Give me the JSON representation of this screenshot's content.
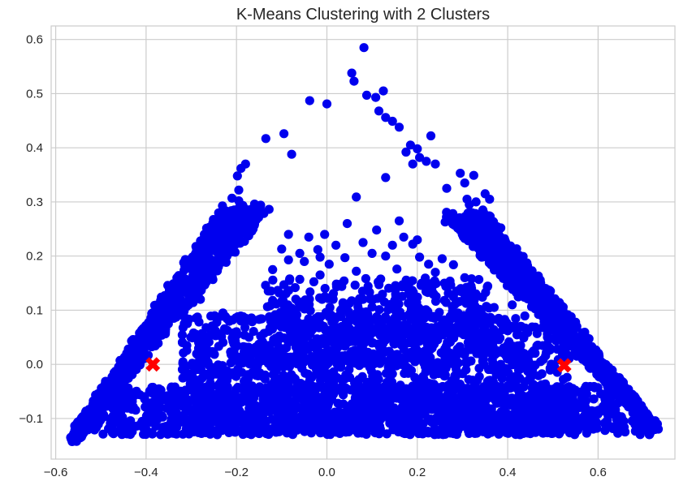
{
  "chart_data": {
    "type": "scatter",
    "title": "K-Means Clustering with 2 Clusters",
    "xlabel": "",
    "ylabel": "",
    "xlim": [
      -0.61,
      0.77
    ],
    "ylim": [
      -0.175,
      0.625
    ],
    "x_ticks": [
      -0.6,
      -0.4,
      -0.2,
      0.0,
      0.2,
      0.4,
      0.6
    ],
    "x_tick_labels": [
      "−0.6",
      "−0.4",
      "−0.2",
      "0.0",
      "0.2",
      "0.4",
      "0.6"
    ],
    "y_ticks": [
      -0.1,
      0.0,
      0.1,
      0.2,
      0.3,
      0.4,
      0.5,
      0.6
    ],
    "y_tick_labels": [
      "−0.1",
      "0.0",
      "0.1",
      "0.2",
      "0.3",
      "0.4",
      "0.5",
      "0.6"
    ],
    "grid": true,
    "legend": "none",
    "colors": {
      "points": "#0000ee",
      "centroids": "#ff0000",
      "grid": "#cccccc",
      "axes": "#cccccc",
      "background": "#ffffff"
    },
    "centroids": [
      {
        "x": -0.385,
        "y": 0.0
      },
      {
        "x": 0.525,
        "y": -0.002
      }
    ],
    "outlier_points": [
      [
        0.082,
        0.585
      ],
      [
        0.055,
        0.538
      ],
      [
        0.06,
        0.523
      ],
      [
        0.125,
        0.505
      ],
      [
        0.088,
        0.497
      ],
      [
        0.108,
        0.493
      ],
      [
        -0.038,
        0.487
      ],
      [
        0.0,
        0.481
      ],
      [
        0.115,
        0.468
      ],
      [
        0.13,
        0.456
      ],
      [
        0.145,
        0.449
      ],
      [
        0.16,
        0.438
      ],
      [
        -0.095,
        0.426
      ],
      [
        -0.135,
        0.417
      ],
      [
        0.23,
        0.422
      ],
      [
        0.185,
        0.405
      ],
      [
        0.2,
        0.398
      ],
      [
        0.175,
        0.392
      ],
      [
        0.205,
        0.382
      ],
      [
        -0.078,
        0.388
      ],
      [
        0.22,
        0.375
      ],
      [
        0.24,
        0.37
      ],
      [
        0.19,
        0.37
      ],
      [
        -0.18,
        0.37
      ],
      [
        -0.19,
        0.362
      ],
      [
        -0.198,
        0.348
      ],
      [
        0.295,
        0.353
      ],
      [
        0.325,
        0.349
      ],
      [
        0.13,
        0.345
      ],
      [
        0.305,
        0.335
      ],
      [
        0.265,
        0.325
      ],
      [
        -0.195,
        0.322
      ],
      [
        -0.21,
        0.307
      ],
      [
        -0.195,
        0.302
      ],
      [
        0.33,
        0.3
      ],
      [
        0.31,
        0.305
      ],
      [
        0.345,
        0.285
      ],
      [
        0.35,
        0.315
      ],
      [
        0.36,
        0.305
      ],
      [
        0.065,
        0.309
      ],
      [
        -0.16,
        0.296
      ],
      [
        0.315,
        0.295
      ],
      [
        -0.205,
        0.285
      ],
      [
        0.16,
        0.265
      ],
      [
        -0.19,
        0.26
      ],
      [
        0.045,
        0.26
      ],
      [
        -0.18,
        0.245
      ],
      [
        0.11,
        0.248
      ],
      [
        -0.085,
        0.24
      ],
      [
        -0.04,
        0.235
      ],
      [
        -0.005,
        0.24
      ],
      [
        0.17,
        0.235
      ],
      [
        0.2,
        0.23
      ],
      [
        0.19,
        0.222
      ],
      [
        -0.1,
        0.213
      ],
      [
        -0.02,
        0.212
      ],
      [
        0.145,
        0.22
      ],
      [
        0.08,
        0.225
      ],
      [
        0.02,
        0.22
      ],
      [
        -0.06,
        0.205
      ],
      [
        0.1,
        0.205
      ],
      [
        0.13,
        0.2
      ],
      [
        0.205,
        0.198
      ],
      [
        0.255,
        0.195
      ],
      [
        -0.085,
        0.193
      ],
      [
        -0.015,
        0.198
      ],
      [
        0.04,
        0.197
      ],
      [
        -0.05,
        0.19
      ],
      [
        0.005,
        0.185
      ],
      [
        0.225,
        0.185
      ],
      [
        0.28,
        0.184
      ],
      [
        -0.24,
        0.18
      ],
      [
        -0.12,
        0.175
      ],
      [
        0.065,
        0.172
      ],
      [
        0.155,
        0.176
      ],
      [
        0.24,
        0.17
      ],
      [
        -0.015,
        0.165
      ],
      [
        0.305,
        0.16
      ],
      [
        0.32,
        0.158
      ],
      [
        -0.06,
        0.157
      ],
      [
        0.21,
        0.15
      ],
      [
        0.26,
        0.15
      ],
      [
        0.23,
        0.145
      ],
      [
        0.355,
        0.143
      ],
      [
        0.18,
        0.14
      ],
      [
        0.32,
        0.14
      ],
      [
        0.33,
        0.13
      ],
      [
        0.28,
        0.128
      ],
      [
        0.305,
        0.122
      ],
      [
        -0.12,
        0.118
      ],
      [
        0.08,
        0.12
      ],
      [
        0.15,
        0.118
      ],
      [
        0.26,
        0.118
      ],
      [
        0.37,
        0.105
      ],
      [
        0.29,
        0.095
      ],
      [
        0.345,
        0.09
      ],
      [
        0.38,
        0.085
      ],
      [
        0.33,
        0.076
      ],
      [
        0.385,
        0.076
      ],
      [
        0.4,
        0.062
      ],
      [
        0.43,
        0.07
      ],
      [
        -0.15,
        0.083
      ],
      [
        -0.19,
        0.08
      ],
      [
        -0.23,
        0.095
      ],
      [
        -0.29,
        0.14
      ],
      [
        -0.28,
        0.12
      ],
      [
        0.41,
        0.11
      ]
    ],
    "dense_regions": [
      {
        "name": "left-edge",
        "from": [
          -0.575,
          -0.135
        ],
        "to": [
          -0.235,
          0.295
        ],
        "width": [
          0.02,
          0.11
        ]
      },
      {
        "name": "right-edge",
        "from": [
          0.735,
          -0.112
        ],
        "to": [
          0.355,
          0.285
        ],
        "width": [
          0.02,
          0.11
        ]
      },
      {
        "name": "base",
        "xrange": [
          -0.56,
          0.72
        ],
        "yrange": [
          -0.13,
          -0.04
        ]
      },
      {
        "name": "body",
        "xrange": [
          -0.32,
          0.54
        ],
        "yrange": [
          -0.13,
          0.09
        ]
      },
      {
        "name": "inner",
        "xrange": [
          -0.14,
          0.36
        ],
        "yrange": [
          0.0,
          0.16
        ]
      }
    ]
  }
}
